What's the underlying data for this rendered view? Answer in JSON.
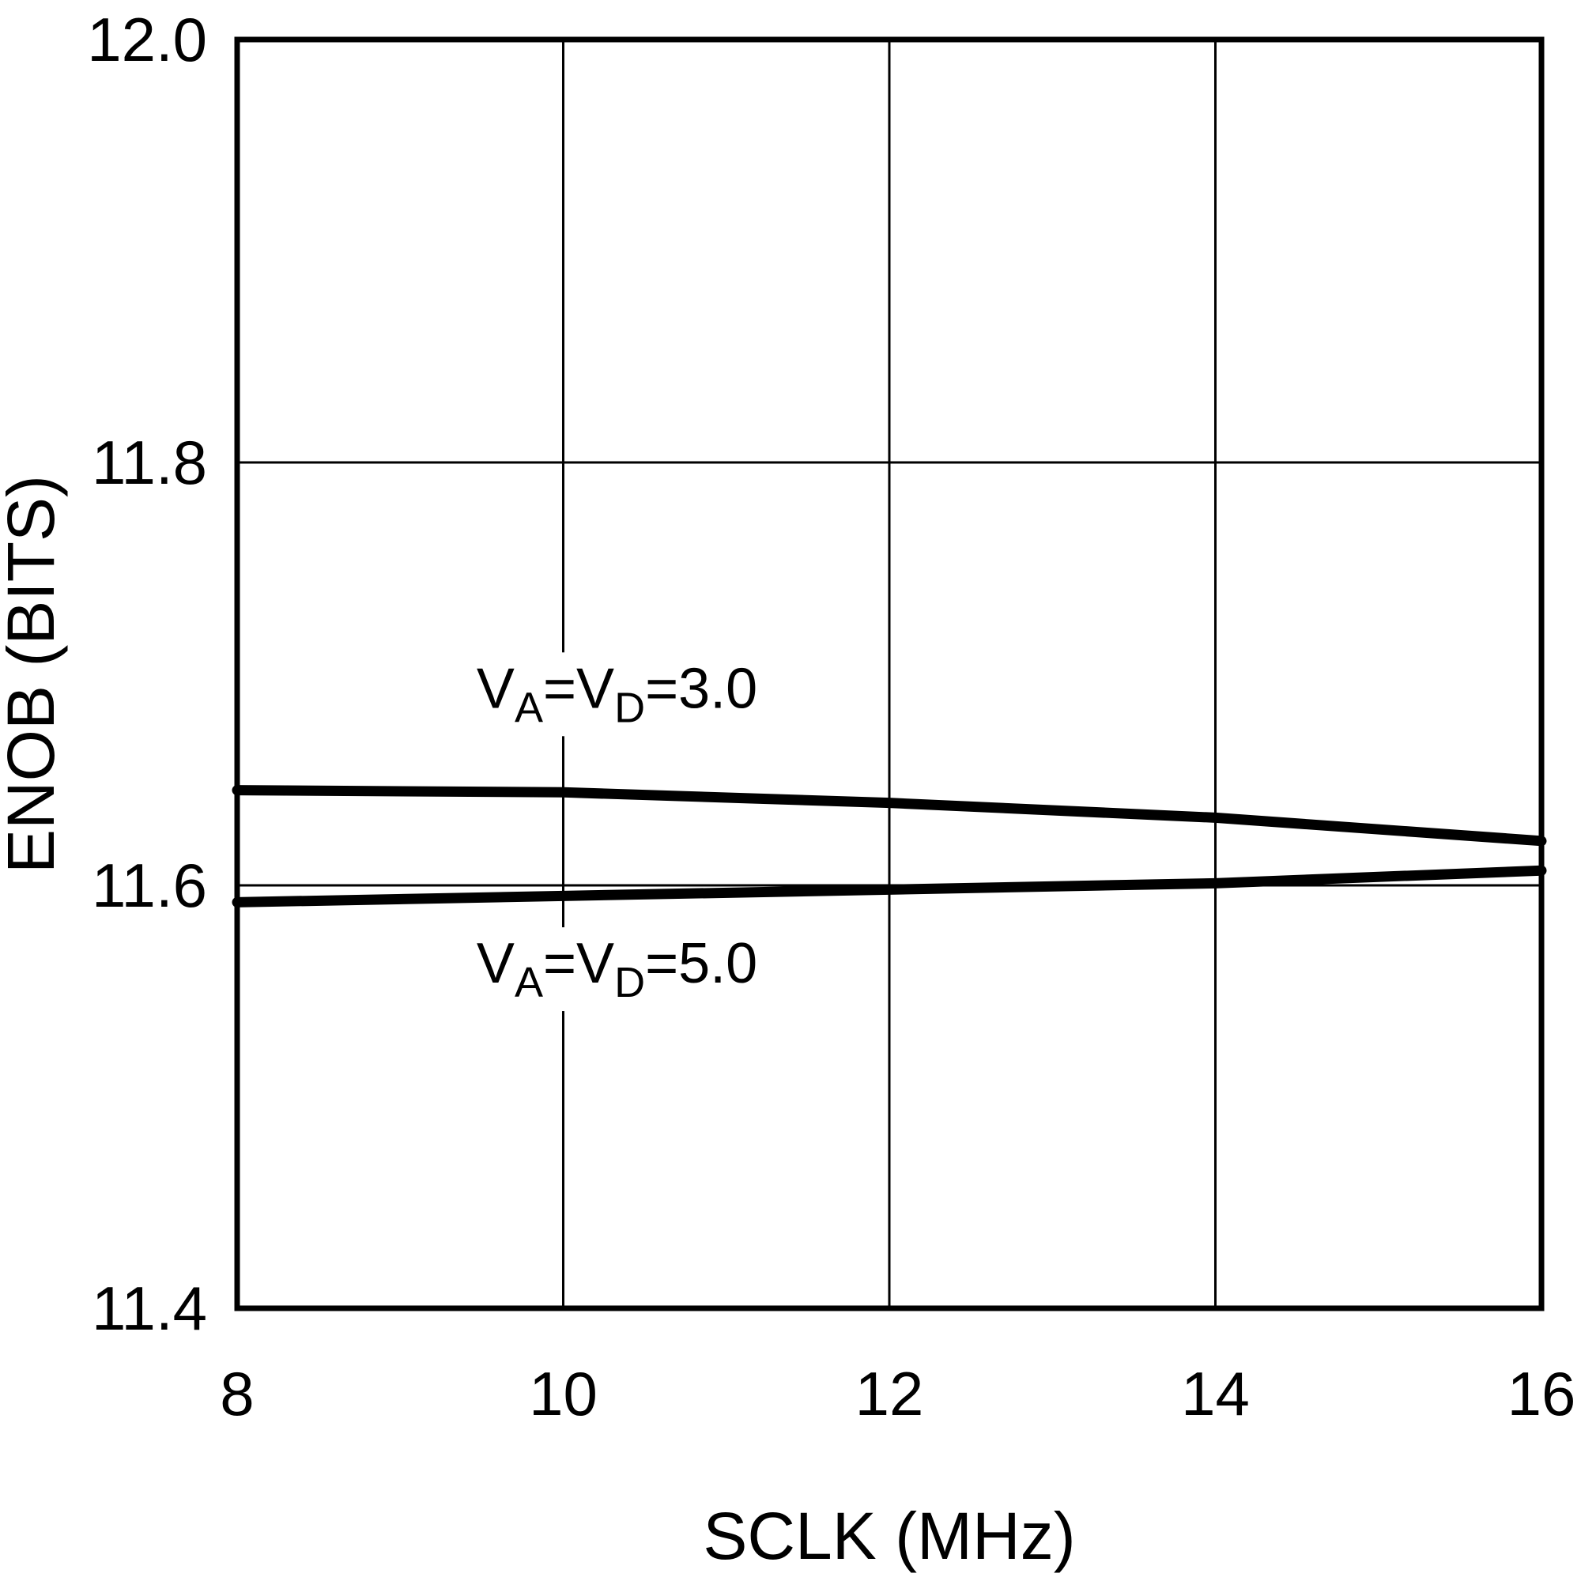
{
  "chart_data": {
    "type": "line",
    "title": "",
    "xlabel": "SCLK (MHz)",
    "ylabel": "ENOB (BITS)",
    "xlim": [
      8,
      16
    ],
    "ylim": [
      11.4,
      12.0
    ],
    "xticks": [
      8,
      10,
      12,
      14,
      16
    ],
    "xtick_labels": [
      "8",
      "10",
      "12",
      "14",
      "16"
    ],
    "yticks": [
      11.4,
      11.6,
      11.8,
      12.0
    ],
    "ytick_labels": [
      "11.4",
      "11.6",
      "11.8",
      "12.0"
    ],
    "grid": true,
    "legend_position": "inline-annotations",
    "background": "#ffffff",
    "line_color": "#000000",
    "x": [
      8,
      10,
      12,
      14,
      16
    ],
    "series": [
      {
        "name": "VA=VD=3.0",
        "label": "V_A=V_D=3.0",
        "values": [
          11.645,
          11.644,
          11.639,
          11.632,
          11.621
        ],
        "color": "#000000"
      },
      {
        "name": "VA=VD=5.0",
        "label": "V_A=V_D=5.0",
        "values": [
          11.592,
          11.595,
          11.598,
          11.601,
          11.607
        ],
        "color": "#000000"
      }
    ],
    "annotations": [
      {
        "text": "V_A=V_D=3.0",
        "x": 10.33,
        "y": 11.684
      },
      {
        "text": "V_A=V_D=5.0",
        "x": 10.33,
        "y": 11.554
      }
    ]
  }
}
